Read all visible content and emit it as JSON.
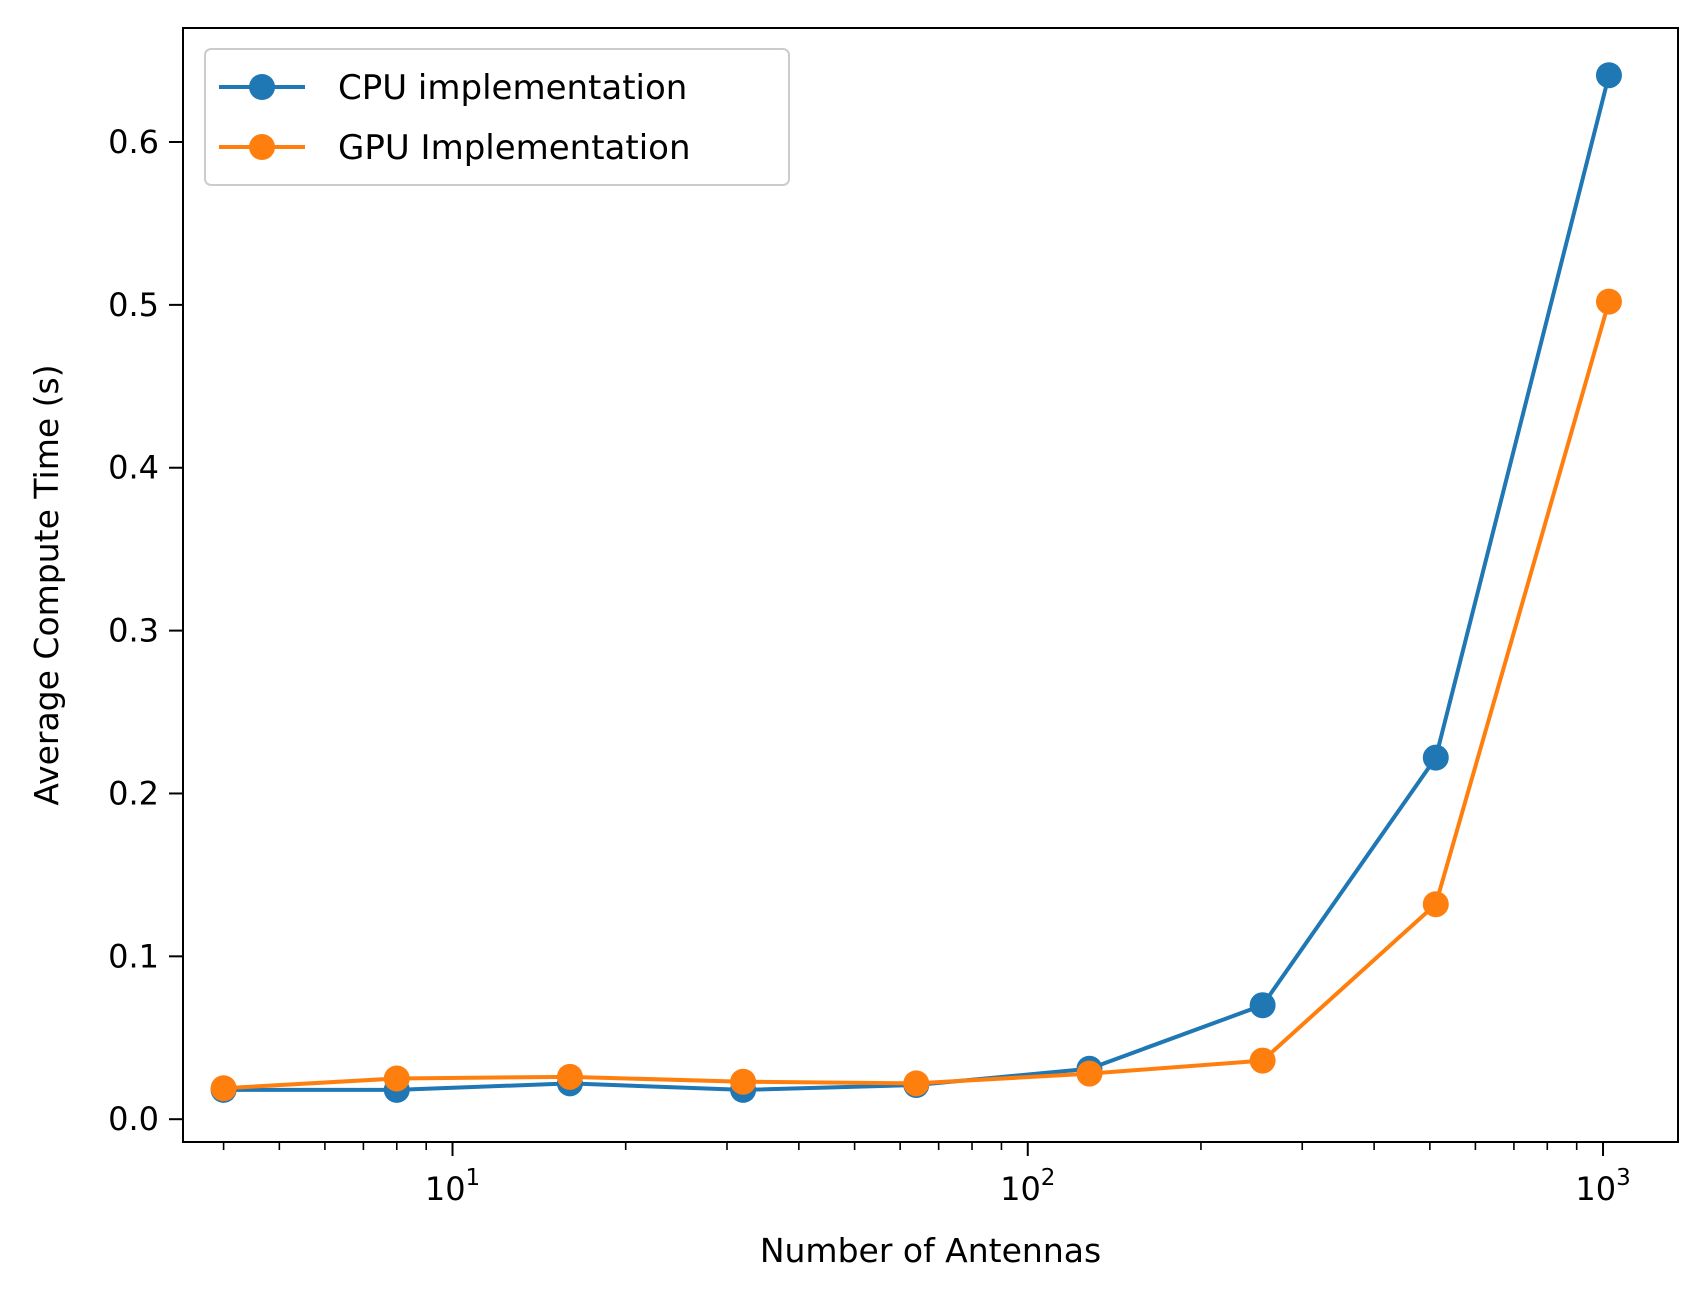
{
  "chart_data": {
    "type": "line",
    "title": "",
    "xlabel": "Number of Antennas",
    "ylabel": "Average Compute Time (s)",
    "x_scale": "log",
    "xlim": [
      3.4,
      1350
    ],
    "ylim": [
      -0.014,
      0.67
    ],
    "grid": false,
    "legend_position": "top-left",
    "x": [
      4,
      8,
      16,
      32,
      64,
      128,
      256,
      512,
      1024
    ],
    "series": [
      {
        "name": "CPU implementation",
        "color": "#1f77b4",
        "values": [
          0.018,
          0.018,
          0.022,
          0.018,
          0.021,
          0.031,
          0.07,
          0.222,
          0.641
        ]
      },
      {
        "name": "GPU Implementation",
        "color": "#ff7f0e",
        "values": [
          0.019,
          0.025,
          0.026,
          0.023,
          0.022,
          0.028,
          0.036,
          0.132,
          0.502
        ]
      }
    ],
    "x_major_ticks": [
      {
        "value": 10,
        "base": "10",
        "exp": "1"
      },
      {
        "value": 100,
        "base": "10",
        "exp": "2"
      },
      {
        "value": 1000,
        "base": "10",
        "exp": "3"
      }
    ],
    "y_ticks": [
      {
        "value": 0.0,
        "label": "0.0"
      },
      {
        "value": 0.1,
        "label": "0.1"
      },
      {
        "value": 0.2,
        "label": "0.2"
      },
      {
        "value": 0.3,
        "label": "0.3"
      },
      {
        "value": 0.4,
        "label": "0.4"
      },
      {
        "value": 0.5,
        "label": "0.5"
      },
      {
        "value": 0.6,
        "label": "0.6"
      }
    ]
  }
}
